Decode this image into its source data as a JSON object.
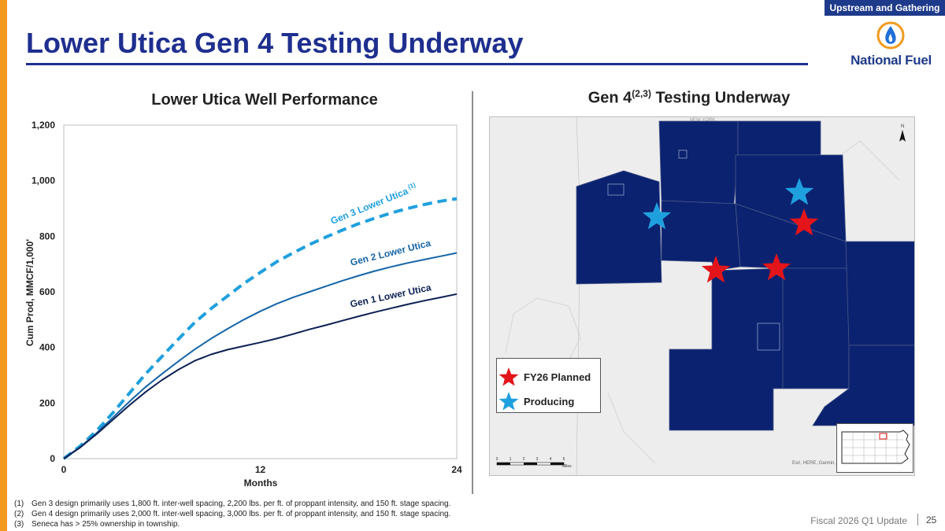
{
  "header": {
    "section_tag": "Upstream and Gathering",
    "title": "Lower Utica Gen 4 Testing Underway",
    "logo_text": "National Fuel"
  },
  "chart_data": {
    "type": "line",
    "title": "Lower Utica Well Performance",
    "xlabel": "Months",
    "ylabel": "Cum Prod, MMCF/1,000'",
    "xlim": [
      0,
      24
    ],
    "ylim": [
      0,
      1200
    ],
    "x_ticks": [
      "0",
      "12",
      "24"
    ],
    "y_ticks": [
      "0",
      "200",
      "400",
      "600",
      "800",
      "1,000",
      "1,200"
    ],
    "x": [
      0,
      1,
      2,
      3,
      4,
      5,
      6,
      7,
      8,
      9,
      10,
      11,
      12,
      13,
      14,
      15,
      16,
      17,
      18,
      19,
      20,
      21,
      22,
      23,
      24
    ],
    "series": [
      {
        "name": "Gen 3 Lower Utica (1)",
        "label_main": "Gen 3 Lower Utica",
        "label_sup": "(1)",
        "style": "dashed",
        "color": "#1fa0de",
        "values": [
          0,
          45,
          100,
          165,
          235,
          305,
          368,
          430,
          490,
          540,
          585,
          630,
          670,
          708,
          740,
          770,
          797,
          822,
          845,
          865,
          884,
          900,
          914,
          926,
          935
        ]
      },
      {
        "name": "Gen 2 Lower Utica",
        "label_main": "Gen 2 Lower Utica",
        "style": "solid",
        "color": "#1565a8",
        "values": [
          0,
          42,
          92,
          148,
          205,
          258,
          305,
          350,
          393,
          432,
          467,
          500,
          530,
          557,
          580,
          600,
          620,
          640,
          658,
          675,
          690,
          704,
          716,
          728,
          740
        ]
      },
      {
        "name": "Gen 1 Lower Utica",
        "label_main": "Gen 1 Lower Utica",
        "style": "solid",
        "color": "#0c2054",
        "values": [
          0,
          40,
          88,
          140,
          192,
          240,
          283,
          320,
          352,
          375,
          392,
          405,
          418,
          432,
          448,
          465,
          480,
          496,
          512,
          527,
          541,
          555,
          568,
          580,
          592
        ]
      }
    ]
  },
  "map": {
    "title_main": "Gen 4",
    "title_sup": "(2,3)",
    "title_rest": " Testing Underway",
    "legend": [
      {
        "label": "FY26 Planned",
        "color": "#e3151a"
      },
      {
        "label": "Producing",
        "color": "#1fa0de"
      }
    ],
    "top_label": "NEW YORK",
    "north_label": "N",
    "scale_ticks": [
      "0",
      "1",
      "2",
      "3",
      "4",
      "5"
    ],
    "scale_unit": "Miles",
    "attribution": "Esri, HERE, Garmin, G",
    "colors": {
      "township": "#0b2270",
      "land": "#ededed"
    }
  },
  "footnotes": [
    {
      "num": "(1)",
      "text": "Gen 3 design primarily uses 1,800 ft. inter-well spacing, 2,200 lbs. per ft. of proppant intensity, and 150 ft. stage spacing."
    },
    {
      "num": "(2)",
      "text": "Gen 4 design primarily uses 2,000 ft. inter-well spacing, 3,000 lbs. per ft. of proppant intensity, and 150 ft. stage spacing."
    },
    {
      "num": "(3)",
      "text": "Seneca has > 25% ownership in township."
    }
  ],
  "footer": {
    "text": "Fiscal 2026 Q1 Update",
    "page": "25"
  }
}
